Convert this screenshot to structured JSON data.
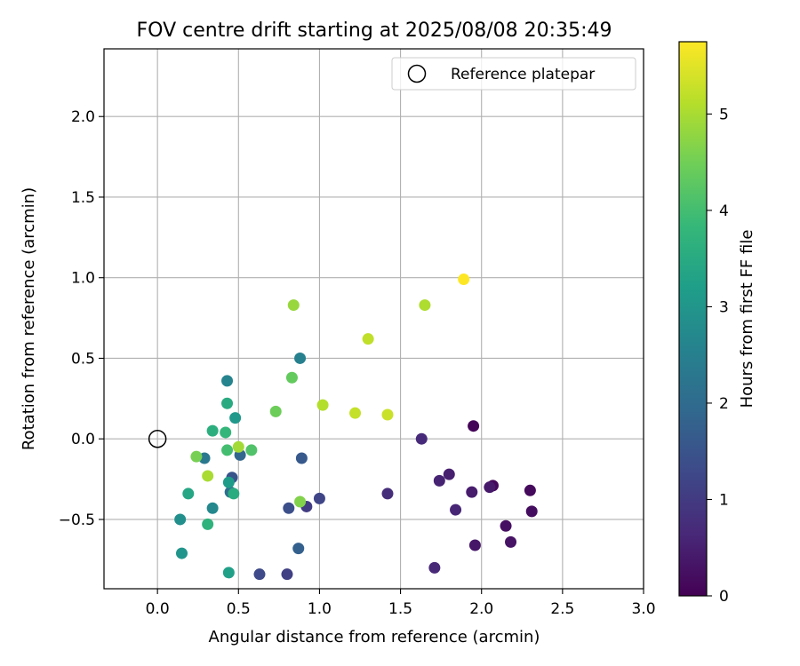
{
  "chart_data": {
    "type": "scatter",
    "title": "FOV centre drift starting at 2025/08/08 20:35:49",
    "xlabel": "Angular distance from reference (arcmin)",
    "ylabel": "Rotation from reference (arcmin)",
    "xlim": [
      -0.33,
      3.0
    ],
    "ylim": [
      -0.93,
      2.42
    ],
    "xticks": [
      0.0,
      0.5,
      1.0,
      1.5,
      2.0,
      2.5,
      3.0
    ],
    "xtick_labels": [
      "0.0",
      "0.5",
      "1.0",
      "1.5",
      "2.0",
      "2.5",
      "3.0"
    ],
    "yticks": [
      -0.5,
      0.0,
      0.5,
      1.0,
      1.5,
      2.0
    ],
    "ytick_labels": [
      "−0.5",
      "0.0",
      "0.5",
      "1.0",
      "1.5",
      "2.0"
    ],
    "grid": true,
    "legend": {
      "position": "top-right",
      "entries": [
        {
          "label": "Reference platepar",
          "marker": "open-circle"
        }
      ]
    },
    "reference": {
      "x": 0.0,
      "y": 0.0
    },
    "colorbar": {
      "label": "Hours from first FF file",
      "colormap": "viridis",
      "range": [
        0,
        5.75
      ],
      "ticks": [
        0,
        1,
        2,
        3,
        4,
        5
      ],
      "tick_labels": [
        "0",
        "1",
        "2",
        "3",
        "4",
        "5"
      ],
      "colors": [
        "#440154",
        "#482878",
        "#3e4989",
        "#31688e",
        "#26828e",
        "#1f9e89",
        "#35b779",
        "#6ece58",
        "#b5de2b",
        "#fde725"
      ]
    },
    "points": [
      {
        "x": 1.95,
        "y": 0.08,
        "hours": 0.05
      },
      {
        "x": 2.07,
        "y": -0.29,
        "hours": 0.1
      },
      {
        "x": 2.3,
        "y": -0.32,
        "hours": 0.15
      },
      {
        "x": 2.31,
        "y": -0.45,
        "hours": 0.2
      },
      {
        "x": 2.15,
        "y": -0.54,
        "hours": 0.25
      },
      {
        "x": 2.18,
        "y": -0.64,
        "hours": 0.3
      },
      {
        "x": 1.96,
        "y": -0.66,
        "hours": 0.35
      },
      {
        "x": 2.05,
        "y": -0.3,
        "hours": 0.4
      },
      {
        "x": 1.94,
        "y": -0.33,
        "hours": 0.45
      },
      {
        "x": 1.8,
        "y": -0.22,
        "hours": 0.5
      },
      {
        "x": 1.74,
        "y": -0.26,
        "hours": 0.55
      },
      {
        "x": 1.84,
        "y": -0.44,
        "hours": 0.6
      },
      {
        "x": 1.71,
        "y": -0.8,
        "hours": 0.65
      },
      {
        "x": 1.63,
        "y": 0.0,
        "hours": 0.7
      },
      {
        "x": 1.42,
        "y": -0.34,
        "hours": 0.75
      },
      {
        "x": 0.92,
        "y": -0.42,
        "hours": 1.05
      },
      {
        "x": 0.8,
        "y": -0.84,
        "hours": 1.1
      },
      {
        "x": 1.0,
        "y": -0.37,
        "hours": 1.2
      },
      {
        "x": 0.63,
        "y": -0.84,
        "hours": 1.3
      },
      {
        "x": 0.81,
        "y": -0.43,
        "hours": 1.4
      },
      {
        "x": 0.46,
        "y": -0.24,
        "hours": 1.5
      },
      {
        "x": 0.89,
        "y": -0.12,
        "hours": 1.6
      },
      {
        "x": 0.87,
        "y": -0.68,
        "hours": 1.75
      },
      {
        "x": 0.51,
        "y": -0.1,
        "hours": 1.9
      },
      {
        "x": 0.45,
        "y": -0.33,
        "hours": 2.1
      },
      {
        "x": 0.29,
        "y": -0.12,
        "hours": 2.3
      },
      {
        "x": 0.88,
        "y": 0.5,
        "hours": 2.5
      },
      {
        "x": 0.43,
        "y": 0.36,
        "hours": 2.6
      },
      {
        "x": 0.34,
        "y": -0.43,
        "hours": 2.7
      },
      {
        "x": 0.14,
        "y": -0.5,
        "hours": 2.85
      },
      {
        "x": 0.15,
        "y": -0.71,
        "hours": 3.0
      },
      {
        "x": 0.48,
        "y": 0.13,
        "hours": 3.05
      },
      {
        "x": 0.44,
        "y": -0.27,
        "hours": 3.15
      },
      {
        "x": 0.44,
        "y": -0.83,
        "hours": 3.25
      },
      {
        "x": 0.19,
        "y": -0.34,
        "hours": 3.4
      },
      {
        "x": 0.43,
        "y": 0.22,
        "hours": 3.5
      },
      {
        "x": 0.47,
        "y": -0.34,
        "hours": 3.55
      },
      {
        "x": 0.34,
        "y": 0.05,
        "hours": 3.6
      },
      {
        "x": 0.31,
        "y": -0.53,
        "hours": 3.7
      },
      {
        "x": 0.42,
        "y": 0.04,
        "hours": 3.8
      },
      {
        "x": 0.43,
        "y": -0.07,
        "hours": 4.0
      },
      {
        "x": 0.58,
        "y": -0.07,
        "hours": 4.15
      },
      {
        "x": 0.83,
        "y": 0.38,
        "hours": 4.35
      },
      {
        "x": 0.73,
        "y": 0.17,
        "hours": 4.45
      },
      {
        "x": 0.24,
        "y": -0.11,
        "hours": 4.55
      },
      {
        "x": 0.88,
        "y": -0.39,
        "hours": 4.65
      },
      {
        "x": 0.84,
        "y": 0.83,
        "hours": 4.85
      },
      {
        "x": 0.5,
        "y": -0.05,
        "hours": 4.95
      },
      {
        "x": 0.31,
        "y": -0.23,
        "hours": 5.0
      },
      {
        "x": 1.65,
        "y": 0.83,
        "hours": 5.05
      },
      {
        "x": 1.02,
        "y": 0.21,
        "hours": 5.1
      },
      {
        "x": 1.3,
        "y": 0.62,
        "hours": 5.2
      },
      {
        "x": 1.22,
        "y": 0.16,
        "hours": 5.25
      },
      {
        "x": 1.42,
        "y": 0.15,
        "hours": 5.3
      },
      {
        "x": 1.89,
        "y": 0.99,
        "hours": 5.75
      }
    ]
  }
}
